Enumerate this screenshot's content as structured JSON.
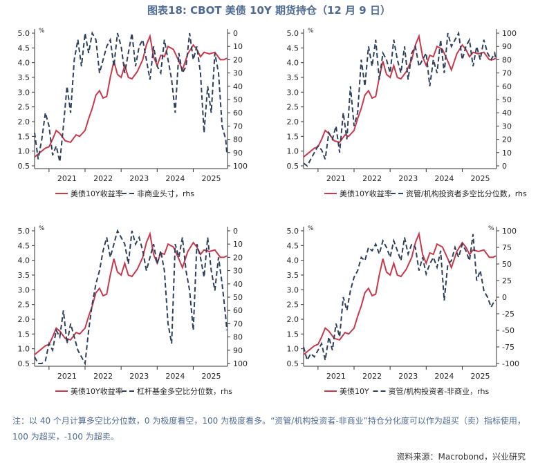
{
  "title": "图表18: CBOT 美债 10Y 期货持仓（12 月 9 日）",
  "note": "注：以 40 个月计算多空比分位数，0 为极度看空，100 为极度看多。“资管/机构投资者-非商业”持仓分化度可以作为超买（卖）指标使用，100 为超买，-100 为超卖。",
  "source": "资料来源：Macrobond，兴业研究",
  "colors": {
    "yield": "#c8384a",
    "position": "#2e3f5c",
    "title": "#4e6a93"
  },
  "chart_data": [
    {
      "id": "noncommercial",
      "type": "line",
      "x_ticks": [
        "2021",
        "2022",
        "2023",
        "2024",
        "2025"
      ],
      "left_unit": "%",
      "right_unit": "",
      "left_ticks": [
        "5.0",
        "4.5",
        "4.0",
        "3.5",
        "3.0",
        "2.5",
        "2.0",
        "1.5",
        "1.0",
        "0.5"
      ],
      "right_ticks": [
        "0",
        "10",
        "20",
        "30",
        "40",
        "50",
        "60",
        "70",
        "80",
        "90",
        "100"
      ],
      "ylim_left": [
        0.5,
        5.0
      ],
      "ylim_right": [
        100,
        0
      ],
      "right_inverted": true,
      "x_range": [
        2020.6,
        2025.95
      ],
      "legend": [
        "美债10Y收益率",
        "非商业头寸，rhs"
      ],
      "series": [
        {
          "name": "美债10Y收益率",
          "axis": "left",
          "x": [
            2020.6,
            2020.75,
            2020.9,
            2021.0,
            2021.1,
            2021.2,
            2021.3,
            2021.45,
            2021.6,
            2021.75,
            2021.85,
            2022.0,
            2022.1,
            2022.2,
            2022.3,
            2022.4,
            2022.5,
            2022.6,
            2022.7,
            2022.8,
            2022.9,
            2023.0,
            2023.1,
            2023.2,
            2023.3,
            2023.45,
            2023.6,
            2023.7,
            2023.8,
            2023.9,
            2024.0,
            2024.1,
            2024.2,
            2024.3,
            2024.45,
            2024.6,
            2024.7,
            2024.85,
            2025.0,
            2025.1,
            2025.2,
            2025.3,
            2025.45,
            2025.6,
            2025.75,
            2025.85,
            2025.93
          ],
          "values": [
            0.8,
            0.95,
            1.1,
            1.15,
            1.4,
            1.7,
            1.6,
            1.35,
            1.3,
            1.55,
            1.5,
            1.7,
            2.1,
            2.45,
            2.9,
            3.05,
            2.8,
            2.85,
            3.5,
            4.05,
            3.6,
            3.5,
            3.9,
            3.5,
            3.45,
            3.7,
            4.1,
            4.6,
            4.9,
            4.2,
            3.9,
            4.25,
            4.2,
            4.55,
            4.45,
            4.05,
            3.75,
            4.3,
            4.6,
            4.45,
            4.2,
            4.35,
            4.3,
            4.35,
            4.1,
            4.1,
            4.15
          ]
        },
        {
          "name": "非商业头寸，rhs",
          "axis": "right",
          "x": [
            2020.6,
            2020.7,
            2020.8,
            2020.9,
            2021.0,
            2021.1,
            2021.2,
            2021.3,
            2021.4,
            2021.5,
            2021.6,
            2021.7,
            2021.8,
            2021.9,
            2022.0,
            2022.1,
            2022.2,
            2022.3,
            2022.4,
            2022.5,
            2022.6,
            2022.7,
            2022.8,
            2022.9,
            2023.0,
            2023.1,
            2023.2,
            2023.3,
            2023.4,
            2023.5,
            2023.6,
            2023.7,
            2023.8,
            2023.9,
            2024.0,
            2024.1,
            2024.2,
            2024.3,
            2024.4,
            2024.5,
            2024.6,
            2024.7,
            2024.8,
            2024.9,
            2025.0,
            2025.1,
            2025.2,
            2025.3,
            2025.4,
            2025.5,
            2025.6,
            2025.7,
            2025.8,
            2025.9,
            2025.93
          ],
          "values": [
            75,
            95,
            80,
            60,
            70,
            92,
            85,
            97,
            70,
            40,
            60,
            20,
            5,
            25,
            0,
            15,
            0,
            5,
            30,
            20,
            10,
            5,
            25,
            0,
            10,
            30,
            15,
            0,
            25,
            10,
            5,
            20,
            35,
            10,
            25,
            30,
            5,
            20,
            35,
            60,
            15,
            30,
            25,
            0,
            20,
            10,
            30,
            75,
            40,
            60,
            15,
            30,
            70,
            80,
            90
          ]
        }
      ]
    },
    {
      "id": "asset-managers",
      "type": "line",
      "x_ticks": [
        "2021",
        "2022",
        "2023",
        "2024",
        "2025"
      ],
      "left_unit": "%",
      "right_unit": "",
      "left_ticks": [
        "5.0",
        "4.5",
        "4.0",
        "3.5",
        "3.0",
        "2.5",
        "2.0",
        "1.5",
        "1.0",
        "0.5"
      ],
      "right_ticks": [
        "100",
        "90",
        "80",
        "70",
        "60",
        "50",
        "40",
        "30",
        "20",
        "10",
        "0"
      ],
      "ylim_left": [
        0.5,
        5.0
      ],
      "ylim_right": [
        0,
        100
      ],
      "right_inverted": false,
      "x_range": [
        2020.6,
        2025.95
      ],
      "legend": [
        "美债10Y收益率",
        "资管/机构投资者多空比分位数，rhs"
      ],
      "series": [
        {
          "name": "美债10Y收益率",
          "axis": "left",
          "x": [
            2020.6,
            2020.75,
            2020.9,
            2021.0,
            2021.1,
            2021.2,
            2021.3,
            2021.45,
            2021.6,
            2021.75,
            2021.85,
            2022.0,
            2022.1,
            2022.2,
            2022.3,
            2022.4,
            2022.5,
            2022.6,
            2022.7,
            2022.8,
            2022.9,
            2023.0,
            2023.1,
            2023.2,
            2023.3,
            2023.45,
            2023.6,
            2023.7,
            2023.8,
            2023.9,
            2024.0,
            2024.1,
            2024.2,
            2024.3,
            2024.45,
            2024.6,
            2024.7,
            2024.85,
            2025.0,
            2025.1,
            2025.2,
            2025.3,
            2025.45,
            2025.6,
            2025.75,
            2025.85,
            2025.93
          ],
          "values": [
            0.8,
            0.95,
            1.1,
            1.15,
            1.4,
            1.7,
            1.6,
            1.35,
            1.3,
            1.55,
            1.5,
            1.7,
            2.1,
            2.45,
            2.9,
            3.05,
            2.8,
            2.85,
            3.5,
            4.05,
            3.6,
            3.5,
            3.9,
            3.5,
            3.45,
            3.7,
            4.1,
            4.6,
            4.9,
            4.2,
            3.9,
            4.25,
            4.2,
            4.55,
            4.45,
            4.05,
            3.75,
            4.3,
            4.6,
            4.45,
            4.2,
            4.35,
            4.3,
            4.35,
            4.1,
            4.1,
            4.15
          ]
        },
        {
          "name": "资管/机构投资者多空比分位数，rhs",
          "axis": "right",
          "x": [
            2020.6,
            2020.7,
            2020.8,
            2020.9,
            2021.0,
            2021.1,
            2021.2,
            2021.3,
            2021.4,
            2021.5,
            2021.6,
            2021.7,
            2021.8,
            2021.9,
            2022.0,
            2022.1,
            2022.2,
            2022.3,
            2022.4,
            2022.5,
            2022.6,
            2022.7,
            2022.8,
            2022.9,
            2023.0,
            2023.1,
            2023.2,
            2023.3,
            2023.4,
            2023.5,
            2023.6,
            2023.7,
            2023.8,
            2023.9,
            2024.0,
            2024.1,
            2024.2,
            2024.3,
            2024.4,
            2024.5,
            2024.6,
            2024.7,
            2024.8,
            2024.9,
            2025.0,
            2025.1,
            2025.2,
            2025.3,
            2025.4,
            2025.5,
            2025.6,
            2025.7,
            2025.8,
            2025.9,
            2025.93
          ],
          "values": [
            2,
            0,
            5,
            10,
            15,
            12,
            5,
            25,
            20,
            30,
            10,
            40,
            20,
            60,
            30,
            40,
            80,
            60,
            90,
            75,
            95,
            65,
            85,
            80,
            70,
            95,
            80,
            70,
            90,
            65,
            85,
            90,
            75,
            80,
            85,
            60,
            80,
            70,
            95,
            70,
            100,
            90,
            95,
            100,
            80,
            90,
            95,
            75,
            90,
            80,
            95,
            85,
            80,
            85,
            80
          ]
        }
      ]
    },
    {
      "id": "leveraged",
      "type": "line",
      "x_ticks": [
        "2021",
        "2022",
        "2023",
        "2024",
        "2025"
      ],
      "left_unit": "%",
      "right_unit": "",
      "left_ticks": [
        "5.0",
        "4.5",
        "4.0",
        "3.5",
        "3.0",
        "2.5",
        "2.0",
        "1.5",
        "1.0",
        "0.5"
      ],
      "right_ticks": [
        "0",
        "10",
        "20",
        "30",
        "40",
        "50",
        "60",
        "70",
        "80",
        "90",
        "100"
      ],
      "ylim_left": [
        0.5,
        5.0
      ],
      "ylim_right": [
        100,
        0
      ],
      "right_inverted": true,
      "x_range": [
        2020.6,
        2025.95
      ],
      "legend": [
        "美债10Y收益率",
        "杠杆基金多空比分位数，rhs"
      ],
      "series": [
        {
          "name": "美债10Y收益率",
          "axis": "left",
          "x": [
            2020.6,
            2020.75,
            2020.9,
            2021.0,
            2021.1,
            2021.2,
            2021.3,
            2021.45,
            2021.6,
            2021.75,
            2021.85,
            2022.0,
            2022.1,
            2022.2,
            2022.3,
            2022.4,
            2022.5,
            2022.6,
            2022.7,
            2022.8,
            2022.9,
            2023.0,
            2023.1,
            2023.2,
            2023.3,
            2023.45,
            2023.6,
            2023.7,
            2023.8,
            2023.9,
            2024.0,
            2024.1,
            2024.2,
            2024.3,
            2024.45,
            2024.6,
            2024.7,
            2024.85,
            2025.0,
            2025.1,
            2025.2,
            2025.3,
            2025.45,
            2025.6,
            2025.75,
            2025.85,
            2025.93
          ],
          "values": [
            0.8,
            0.95,
            1.1,
            1.15,
            1.4,
            1.7,
            1.6,
            1.35,
            1.3,
            1.55,
            1.5,
            1.7,
            2.1,
            2.45,
            2.9,
            3.05,
            2.8,
            2.85,
            3.5,
            4.05,
            3.6,
            3.5,
            3.9,
            3.5,
            3.45,
            3.7,
            4.1,
            4.6,
            4.9,
            4.2,
            3.9,
            4.25,
            4.2,
            4.55,
            4.45,
            4.05,
            3.75,
            4.3,
            4.6,
            4.45,
            4.2,
            4.35,
            4.3,
            4.35,
            4.1,
            4.1,
            4.15
          ]
        },
        {
          "name": "杠杆基金多空比分位数，rhs",
          "axis": "right",
          "x": [
            2020.6,
            2020.7,
            2020.8,
            2020.9,
            2021.0,
            2021.1,
            2021.2,
            2021.3,
            2021.4,
            2021.5,
            2021.6,
            2021.7,
            2021.8,
            2021.9,
            2022.0,
            2022.1,
            2022.2,
            2022.3,
            2022.4,
            2022.5,
            2022.6,
            2022.7,
            2022.8,
            2022.9,
            2023.0,
            2023.1,
            2023.2,
            2023.3,
            2023.4,
            2023.5,
            2023.6,
            2023.7,
            2023.8,
            2023.9,
            2024.0,
            2024.1,
            2024.2,
            2024.3,
            2024.4,
            2024.5,
            2024.6,
            2024.7,
            2024.8,
            2024.9,
            2025.0,
            2025.1,
            2025.2,
            2025.3,
            2025.4,
            2025.5,
            2025.6,
            2025.7,
            2025.8,
            2025.9,
            2025.93
          ],
          "values": [
            95,
            100,
            100,
            98,
            85,
            90,
            75,
            80,
            60,
            85,
            70,
            80,
            90,
            95,
            100,
            75,
            55,
            40,
            30,
            15,
            5,
            20,
            10,
            0,
            5,
            10,
            25,
            0,
            10,
            5,
            15,
            30,
            20,
            10,
            25,
            15,
            30,
            70,
            85,
            10,
            20,
            5,
            30,
            45,
            75,
            10,
            20,
            35,
            5,
            30,
            45,
            20,
            40,
            65,
            75
          ]
        }
      ]
    },
    {
      "id": "divergence",
      "type": "line",
      "x_ticks": [
        "2021",
        "2022",
        "2023",
        "2024",
        "2025"
      ],
      "left_unit": "%",
      "right_unit": "%",
      "left_ticks": [
        "5.0",
        "4.5",
        "4.0",
        "3.5",
        "3.0",
        "2.5",
        "2.0",
        "1.5",
        "1.0",
        "0.5"
      ],
      "right_ticks": [
        "100",
        "75",
        "50",
        "25",
        "0",
        "-25",
        "-50",
        "-75",
        "-100"
      ],
      "ylim_left": [
        0.5,
        5.0
      ],
      "ylim_right": [
        -100,
        100
      ],
      "right_inverted": false,
      "x_range": [
        2020.6,
        2025.95
      ],
      "legend": [
        "美债10Y",
        "资管/机构投资者-非商业，rhs"
      ],
      "series": [
        {
          "name": "美债10Y",
          "axis": "left",
          "x": [
            2020.6,
            2020.75,
            2020.9,
            2021.0,
            2021.1,
            2021.2,
            2021.3,
            2021.45,
            2021.6,
            2021.75,
            2021.85,
            2022.0,
            2022.1,
            2022.2,
            2022.3,
            2022.4,
            2022.5,
            2022.6,
            2022.7,
            2022.8,
            2022.9,
            2023.0,
            2023.1,
            2023.2,
            2023.3,
            2023.45,
            2023.6,
            2023.7,
            2023.8,
            2023.9,
            2024.0,
            2024.1,
            2024.2,
            2024.3,
            2024.45,
            2024.6,
            2024.7,
            2024.85,
            2025.0,
            2025.1,
            2025.2,
            2025.3,
            2025.45,
            2025.6,
            2025.75,
            2025.85,
            2025.93
          ],
          "values": [
            0.8,
            0.95,
            1.1,
            1.15,
            1.4,
            1.7,
            1.6,
            1.35,
            1.3,
            1.55,
            1.5,
            1.7,
            2.1,
            2.45,
            2.9,
            3.05,
            2.8,
            2.85,
            3.5,
            4.05,
            3.6,
            3.5,
            3.9,
            3.5,
            3.45,
            3.7,
            4.1,
            4.6,
            4.9,
            4.2,
            3.9,
            4.25,
            4.2,
            4.55,
            4.45,
            4.05,
            3.75,
            4.3,
            4.6,
            4.45,
            4.2,
            4.35,
            4.3,
            4.35,
            4.1,
            4.1,
            4.15
          ]
        },
        {
          "name": "资管/机构投资者-非商业，rhs",
          "axis": "right",
          "x": [
            2020.6,
            2020.7,
            2020.8,
            2020.9,
            2021.0,
            2021.1,
            2021.2,
            2021.3,
            2021.4,
            2021.5,
            2021.6,
            2021.7,
            2021.8,
            2021.9,
            2022.0,
            2022.1,
            2022.2,
            2022.3,
            2022.4,
            2022.5,
            2022.6,
            2022.7,
            2022.8,
            2022.9,
            2023.0,
            2023.1,
            2023.2,
            2023.3,
            2023.4,
            2023.5,
            2023.6,
            2023.7,
            2023.8,
            2023.9,
            2024.0,
            2024.1,
            2024.2,
            2024.3,
            2024.4,
            2024.5,
            2024.6,
            2024.7,
            2024.8,
            2024.9,
            2025.0,
            2025.1,
            2025.2,
            2025.3,
            2025.4,
            2025.5,
            2025.6,
            2025.7,
            2025.8,
            2025.9,
            2025.93
          ],
          "values": [
            -75,
            -95,
            -85,
            -90,
            -80,
            -70,
            -95,
            -60,
            -80,
            -40,
            -60,
            0,
            -20,
            10,
            30,
            40,
            60,
            55,
            75,
            70,
            80,
            65,
            85,
            75,
            60,
            85,
            70,
            55,
            90,
            65,
            80,
            75,
            40,
            60,
            35,
            50,
            60,
            45,
            70,
            -5,
            50,
            55,
            75,
            60,
            80,
            70,
            55,
            95,
            25,
            40,
            10,
            0,
            -15,
            -5,
            -5
          ]
        }
      ]
    }
  ]
}
